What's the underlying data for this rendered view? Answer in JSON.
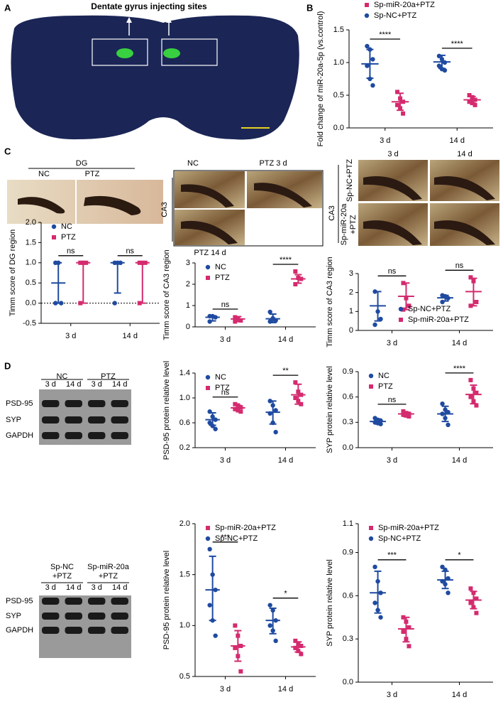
{
  "panel_letters": [
    "A",
    "B",
    "C",
    "D"
  ],
  "figure_a": {
    "title": "Dentate gyrus injecting sites"
  },
  "images_c": {
    "dg": {
      "title": "DG",
      "left": "NC",
      "right": "PTZ"
    },
    "ca3": {
      "top_left": "NC",
      "top_right": "PTZ 3 d",
      "side": "CA3",
      "bottom": "PTZ 14 d"
    },
    "sp": {
      "col1": "3 d",
      "col2": "14 d",
      "side": "CA3",
      "row1": "Sp-NC+PTZ",
      "row2_line1": "Sp-miR-20a",
      "row2_line2": "+PTZ"
    }
  },
  "blots": [
    {
      "groups": [
        "NC",
        "PTZ"
      ],
      "lanes": [
        "3 d",
        "14 d",
        "3 d",
        "14 d"
      ],
      "rows": [
        "PSD-95",
        "SYP",
        "GAPDH"
      ]
    },
    {
      "groups": [
        [
          "Sp-NC",
          "+PTZ"
        ],
        [
          "Sp-miR-20a",
          "+PTZ"
        ]
      ],
      "lanes": [
        "3 d",
        "14 d",
        "3 d",
        "14 d"
      ],
      "rows": [
        "PSD-95",
        "SYP",
        "GAPDH"
      ]
    }
  ],
  "chart_data": [
    {
      "type": "dot",
      "y_label": "Fold change of miR-20a-5p (vs.control)",
      "categories": [
        "3 d",
        "14 d"
      ],
      "ylim": [
        0,
        1.5
      ],
      "yticks": [
        {
          "value": 0,
          "label": "0.0"
        },
        0.5,
        {
          "value": 1,
          "label": "1.0"
        },
        1.5
      ],
      "legend": "top",
      "legend_reversed": true,
      "annotations": [
        "****",
        "****"
      ],
      "series": [
        {
          "name": "Sp-NC+PTZ",
          "color": "#1f4aa0",
          "marker": "circle",
          "values": [
            [
              1.25,
              1.2,
              1.05,
              0.95,
              0.75,
              0.65
            ],
            [
              1.1,
              1.05,
              1.0,
              0.95,
              0.9,
              0.88
            ]
          ],
          "center": [
            0.98,
            1.01
          ],
          "lower": [
            0.76,
            0.91
          ],
          "upper": [
            1.2,
            1.11
          ]
        },
        {
          "name": "Sp-miR-20a+PTZ",
          "color": "#d42a6e",
          "marker": "square",
          "values": [
            [
              0.55,
              0.45,
              0.4,
              0.35,
              0.3,
              0.22
            ],
            [
              0.5,
              0.47,
              0.43,
              0.4,
              0.38,
              0.35
            ]
          ],
          "center": [
            0.4,
            0.43
          ],
          "lower": [
            0.27,
            0.38
          ],
          "upper": [
            0.53,
            0.48
          ]
        }
      ]
    },
    {
      "type": "dot",
      "y_label": "Timm score of DG region",
      "categories": [
        "3 d",
        "14 d"
      ],
      "ylim": [
        -0.5,
        2
      ],
      "yticks": [
        -0.5,
        {
          "value": 0,
          "label": "0.0"
        },
        0.5,
        {
          "value": 1,
          "label": "1.0"
        },
        1.5,
        {
          "value": 2,
          "label": "2.0"
        }
      ],
      "legend": "upper left",
      "zero_line": true,
      "annotations": [
        "ns",
        "ns"
      ],
      "series": [
        {
          "name": "NC",
          "color": "#1f4aa0",
          "marker": "circle",
          "values": [
            [
              1,
              1,
              0,
              0
            ],
            [
              1,
              1,
              1,
              0
            ]
          ],
          "center": [
            0.5,
            1
          ],
          "lower": [
            0,
            0.25
          ],
          "upper": [
            1,
            1
          ]
        },
        {
          "name": "PTZ",
          "color": "#d42a6e",
          "marker": "square",
          "values": [
            [
              1,
              1,
              1,
              0
            ],
            [
              1,
              1,
              1,
              0
            ]
          ],
          "center": [
            1,
            1
          ],
          "lower": [
            0,
            0
          ],
          "upper": [
            1,
            1
          ]
        }
      ]
    },
    {
      "type": "dot",
      "y_label": "Timm score of CA3 region",
      "categories": [
        "3 d",
        "14 d"
      ],
      "ylim": [
        0,
        3
      ],
      "yticks": [
        0,
        1,
        2,
        3
      ],
      "legend": "upper left",
      "annotations": [
        "ns",
        "****"
      ],
      "series": [
        {
          "name": "NC",
          "color": "#1f4aa0",
          "marker": "circle",
          "values": [
            [
              0.5,
              0.5,
              0.45,
              0.25
            ],
            [
              0.7,
              0.4,
              0.3,
              0.25
            ]
          ],
          "center": [
            0.45,
            0.38
          ],
          "lower": [
            0.28,
            0.2
          ],
          "upper": [
            0.5,
            0.6
          ]
        },
        {
          "name": "PTZ",
          "color": "#d42a6e",
          "marker": "square",
          "values": [
            [
              0.45,
              0.4,
              0.3,
              0.25
            ],
            [
              2.6,
              2.3,
              2.25,
              2.0
            ]
          ],
          "center": [
            0.37,
            2.25
          ],
          "lower": [
            0.25,
            2.05
          ],
          "upper": [
            0.48,
            2.45
          ]
        }
      ]
    },
    {
      "type": "dot",
      "y_label": "Timm score of CA3 region",
      "categories": [
        "3 d",
        "14 d"
      ],
      "ylim": [
        0,
        3
      ],
      "yticks": [
        0,
        1,
        2,
        3
      ],
      "legend": "lower right",
      "annotations": [
        "ns",
        "ns"
      ],
      "series": [
        {
          "name": "Sp-NC+PTZ",
          "color": "#1f4aa0",
          "marker": "circle",
          "values": [
            [
              2.05,
              1.0,
              0.6,
              0.3
            ],
            [
              1.85,
              1.8,
              1.7,
              1.5
            ]
          ],
          "center": [
            1.3,
            1.72
          ],
          "lower": [
            0.5,
            1.55
          ],
          "upper": [
            2.05,
            1.85
          ]
        },
        {
          "name": "Sp-miR-20a+PTZ",
          "color": "#d42a6e",
          "marker": "square",
          "values": [
            [
              2.5,
              1.7,
              1.3,
              1.1
            ],
            [
              2.8,
              2.6,
              1.5,
              1.3
            ]
          ],
          "center": [
            1.8,
            2.05
          ],
          "lower": [
            1.1,
            1.3
          ],
          "upper": [
            2.5,
            2.75
          ]
        }
      ]
    },
    {
      "type": "dot",
      "y_label": "PSD-95 protein relative level",
      "categories": [
        "3 d",
        "14 d"
      ],
      "ylim": [
        0.2,
        1.4
      ],
      "yticks": [
        0.2,
        0.6,
        {
          "value": 1,
          "label": "1.0"
        },
        1.4
      ],
      "legend": "upper left",
      "annotations": [
        "ns",
        "**"
      ],
      "series": [
        {
          "name": "NC",
          "color": "#1f4aa0",
          "marker": "circle",
          "values": [
            [
              0.78,
              0.7,
              0.65,
              0.6,
              0.55,
              0.5
            ],
            [
              0.95,
              0.88,
              0.8,
              0.75,
              0.6,
              0.45
            ]
          ],
          "center": [
            0.65,
            0.77
          ],
          "lower": [
            0.56,
            0.58
          ],
          "upper": [
            0.76,
            0.95
          ]
        },
        {
          "name": "PTZ",
          "color": "#d42a6e",
          "marker": "square",
          "values": [
            [
              0.9,
              0.88,
              0.85,
              0.82,
              0.8,
              0.78
            ],
            [
              1.25,
              1.1,
              1.05,
              1.0,
              0.95,
              0.9
            ]
          ],
          "center": [
            0.84,
            1.05
          ],
          "lower": [
            0.8,
            0.9
          ],
          "upper": [
            0.88,
            1.22
          ]
        }
      ]
    },
    {
      "type": "dot",
      "y_label": "SYP protein relative level",
      "categories": [
        "3 d",
        "14 d"
      ],
      "ylim": [
        0,
        0.9
      ],
      "yticks": [
        {
          "value": 0,
          "label": "0.0"
        },
        0.3,
        0.6,
        0.9
      ],
      "legend": "upper left",
      "annotations": [
        "ns",
        "****"
      ],
      "series": [
        {
          "name": "NC",
          "color": "#1f4aa0",
          "marker": "circle",
          "values": [
            [
              0.35,
              0.33,
              0.32,
              0.3,
              0.29,
              0.28
            ],
            [
              0.52,
              0.45,
              0.42,
              0.4,
              0.35,
              0.27
            ]
          ],
          "center": [
            0.31,
            0.4
          ],
          "lower": [
            0.28,
            0.31
          ],
          "upper": [
            0.34,
            0.49
          ]
        },
        {
          "name": "PTZ",
          "color": "#d42a6e",
          "marker": "square",
          "values": [
            [
              0.43,
              0.41,
              0.4,
              0.39,
              0.38,
              0.37
            ],
            [
              0.8,
              0.7,
              0.65,
              0.6,
              0.55,
              0.5
            ]
          ],
          "center": [
            0.4,
            0.63
          ],
          "lower": [
            0.37,
            0.52
          ],
          "upper": [
            0.42,
            0.74
          ]
        }
      ]
    },
    {
      "type": "dot",
      "y_label": "PSD-95 protein relative level",
      "categories": [
        "3 d",
        "14 d"
      ],
      "ylim": [
        0.5,
        2
      ],
      "yticks": [
        0.5,
        {
          "value": 1,
          "label": "1.0"
        },
        1.5,
        {
          "value": 2,
          "label": "2.0"
        }
      ],
      "legend": "upper left",
      "legend_reversed": true,
      "annotations": [
        "***",
        "*"
      ],
      "series": [
        {
          "name": "Sp-NC+PTZ",
          "color": "#1f4aa0",
          "marker": "circle",
          "values": [
            [
              1.75,
              1.5,
              1.35,
              1.2,
              1.05,
              0.9
            ],
            [
              1.2,
              1.15,
              1.05,
              1.0,
              0.95,
              0.85
            ]
          ],
          "center": [
            1.35,
            1.05
          ],
          "lower": [
            1.05,
            0.92
          ],
          "upper": [
            1.68,
            1.17
          ]
        },
        {
          "name": "Sp-miR-20a+PTZ",
          "color": "#d42a6e",
          "marker": "square",
          "values": [
            [
              1.0,
              0.9,
              0.8,
              0.78,
              0.7,
              0.55
            ],
            [
              0.85,
              0.82,
              0.8,
              0.78,
              0.75,
              0.72
            ]
          ],
          "center": [
            0.8,
            0.79
          ],
          "lower": [
            0.65,
            0.74
          ],
          "upper": [
            0.95,
            0.84
          ]
        }
      ]
    },
    {
      "type": "dot",
      "y_label": "SYP protein relative level",
      "categories": [
        "3 d",
        "14 d"
      ],
      "ylim": [
        0,
        1.1
      ],
      "yticks": [
        {
          "value": 0,
          "label": "0.0"
        },
        0.3,
        0.6,
        0.9,
        1.1
      ],
      "legend": "upper left",
      "legend_reversed": true,
      "annotations": [
        "***",
        "*"
      ],
      "series": [
        {
          "name": "Sp-NC+PTZ",
          "color": "#1f4aa0",
          "marker": "circle",
          "values": [
            [
              0.8,
              0.7,
              0.62,
              0.55,
              0.5,
              0.45
            ],
            [
              0.8,
              0.78,
              0.72,
              0.7,
              0.68,
              0.62
            ]
          ],
          "center": [
            0.62,
            0.71
          ],
          "lower": [
            0.48,
            0.65
          ],
          "upper": [
            0.77,
            0.77
          ]
        },
        {
          "name": "Sp-miR-20a+PTZ",
          "color": "#d42a6e",
          "marker": "square",
          "values": [
            [
              0.45,
              0.42,
              0.38,
              0.35,
              0.3,
              0.25
            ],
            [
              0.65,
              0.62,
              0.58,
              0.55,
              0.52,
              0.48
            ]
          ],
          "center": [
            0.37,
            0.57
          ],
          "lower": [
            0.28,
            0.51
          ],
          "upper": [
            0.45,
            0.63
          ]
        }
      ]
    }
  ]
}
